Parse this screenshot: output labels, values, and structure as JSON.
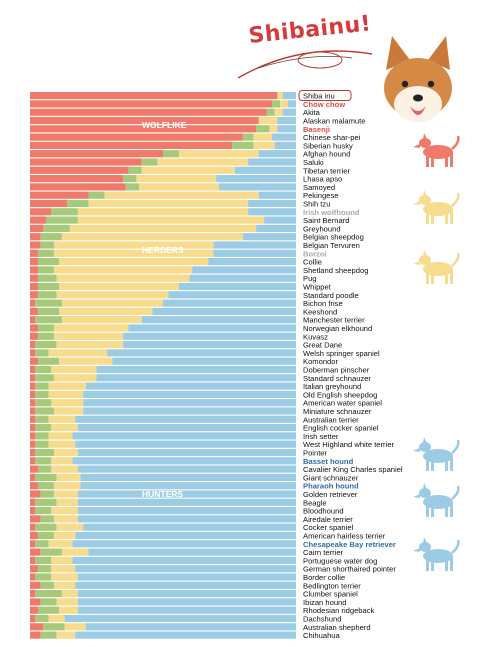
{
  "header": {
    "title": "Shibainu!"
  },
  "legend_colors": {
    "wolflike": "#ef7a6c",
    "herders": "#f6dc8c",
    "hunters": "#9ccbe4",
    "other": "#a7c97a",
    "highlight_breed": "#e04b4b",
    "hunter_breed": "#2f6da3",
    "herder_breed": "#a9a9a9"
  },
  "chart_data": {
    "type": "bar",
    "orientation": "horizontal",
    "stacked": true,
    "group_labels": [
      "WOLFLIKE",
      "HERDERS",
      "HUNTERS"
    ],
    "breeds": [
      "Shiba inu",
      "Chow chow",
      "Akita",
      "Alaskan malamute",
      "Basenji",
      "Chinese shar-pei",
      "Siberian husky",
      "Afghan hound",
      "Saluki",
      "Tibetan terrier",
      "Lhasa apso",
      "Samoyed",
      "Pekingese",
      "Shih tzu",
      "Irish wolfhound",
      "Saint Bernard",
      "Greyhound",
      "Belgian sheepdog",
      "Belgian Tervuren",
      "Borzoi",
      "Collie",
      "Shetland sheepdog",
      "Pug",
      "Whippet",
      "Standard poodle",
      "Bichon frise",
      "Keeshond",
      "Manchester terrier",
      "Norwegian elkhound",
      "Kuvasz",
      "Great Dane",
      "Welsh springer spaniel",
      "Komondor",
      "Doberman pinscher",
      "Standard schnauzer",
      "Italian greyhound",
      "Old English sheepdog",
      "American water spaniel",
      "Miniature schnauzer",
      "Australian terrier",
      "English cocker spaniel",
      "Irish setter",
      "West Highland white terrier",
      "Pointer",
      "Basset hound",
      "Cavalier King Charles spaniel",
      "Giant schnauzer",
      "Pharaoh hound",
      "Golden retriever",
      "Beagle",
      "Bloodhound",
      "Airedale terrier",
      "Cocker spaniel",
      "American hairless terrier",
      "Chesapeake Bay retriever",
      "Cairn terrier",
      "Portuguese water dog",
      "German shorthaired pointer",
      "Border collie",
      "Bedlington terrier",
      "Clumber spaniel",
      "Ibizan hound",
      "Rhodesian ridgeback",
      "Dachshund",
      "Australian shepherd",
      "Chihuahua"
    ],
    "highlighted_breeds": {
      "Shiba inu": "boxed",
      "Chow chow": "wolflike",
      "Basenji": "wolflike",
      "Irish wolfhound": "herder",
      "Borzoi": "herder",
      "Basset hound": "hunter",
      "Pharaoh hound": "hunter",
      "Chesapeake Bay retriever": "hunter"
    },
    "components": [
      "wolflike",
      "other",
      "herders",
      "hunters"
    ],
    "wolflike": [
      0.93,
      0.91,
      0.89,
      0.86,
      0.85,
      0.8,
      0.76,
      0.5,
      0.42,
      0.37,
      0.35,
      0.36,
      0.22,
      0.14,
      0.08,
      0.06,
      0.05,
      0.04,
      0.04,
      0.03,
      0.03,
      0.03,
      0.03,
      0.03,
      0.03,
      0.02,
      0.03,
      0.02,
      0.03,
      0.03,
      0.02,
      0.02,
      0.03,
      0.02,
      0.02,
      0.02,
      0.02,
      0.02,
      0.02,
      0.02,
      0.02,
      0.02,
      0.02,
      0.02,
      0.02,
      0.03,
      0.02,
      0.03,
      0.04,
      0.02,
      0.02,
      0.04,
      0.02,
      0.03,
      0.02,
      0.04,
      0.02,
      0.03,
      0.02,
      0.04,
      0.02,
      0.04,
      0.03,
      0.02,
      0.05,
      0.04
    ],
    "other": [
      0.0,
      0.03,
      0.03,
      0.0,
      0.05,
      0.04,
      0.08,
      0.06,
      0.06,
      0.05,
      0.05,
      0.05,
      0.06,
      0.08,
      0.1,
      0.12,
      0.1,
      0.08,
      0.05,
      0.06,
      0.08,
      0.06,
      0.07,
      0.08,
      0.07,
      0.1,
      0.08,
      0.1,
      0.06,
      0.06,
      0.08,
      0.05,
      0.08,
      0.06,
      0.07,
      0.05,
      0.05,
      0.06,
      0.07,
      0.05,
      0.06,
      0.05,
      0.05,
      0.07,
      0.06,
      0.05,
      0.08,
      0.06,
      0.05,
      0.08,
      0.06,
      0.05,
      0.08,
      0.06,
      0.05,
      0.08,
      0.06,
      0.05,
      0.06,
      0.05,
      0.1,
      0.06,
      0.08,
      0.05,
      0.08,
      0.06
    ],
    "herders": [
      0.02,
      0.03,
      0.03,
      0.07,
      0.03,
      0.07,
      0.08,
      0.3,
      0.34,
      0.35,
      0.3,
      0.3,
      0.58,
      0.6,
      0.64,
      0.7,
      0.7,
      0.68,
      0.6,
      0.6,
      0.56,
      0.52,
      0.5,
      0.45,
      0.42,
      0.38,
      0.35,
      0.3,
      0.28,
      0.26,
      0.25,
      0.22,
      0.2,
      0.17,
      0.16,
      0.14,
      0.13,
      0.12,
      0.11,
      0.1,
      0.1,
      0.09,
      0.1,
      0.09,
      0.08,
      0.1,
      0.09,
      0.1,
      0.09,
      0.08,
      0.1,
      0.09,
      0.1,
      0.08,
      0.09,
      0.1,
      0.08,
      0.09,
      0.1,
      0.08,
      0.06,
      0.08,
      0.07,
      0.06,
      0.08,
      0.07
    ]
  },
  "annotation_side": {
    "dog_icons": [
      "red-dog-icon",
      "yellow-dog-icon",
      "yellow-dog-icon",
      "blue-dog-icon",
      "blue-dog-icon",
      "blue-dog-icon"
    ]
  }
}
